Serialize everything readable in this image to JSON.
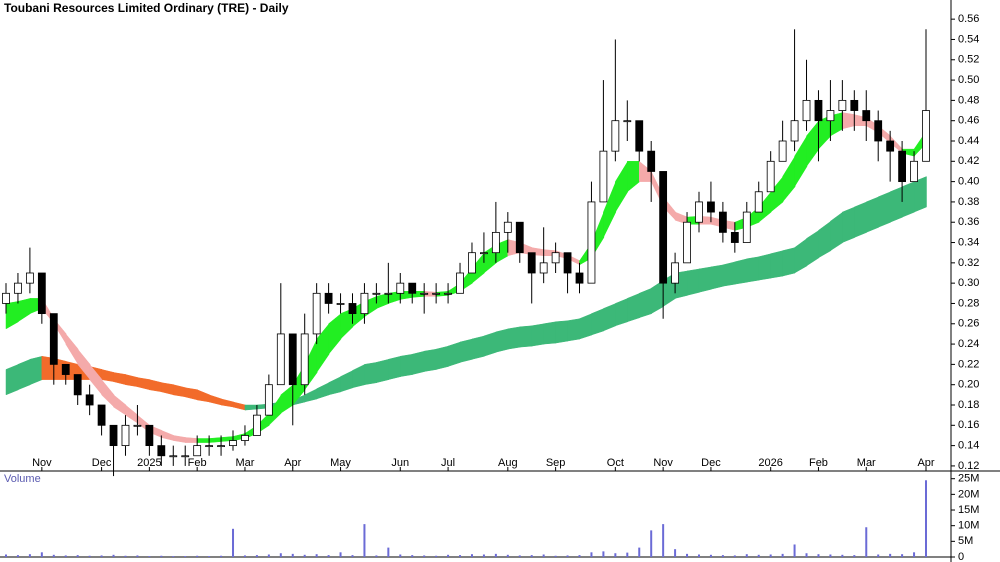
{
  "chart_data": {
    "type": "candlestick",
    "title": "Toubani Resources Limited Ordinary (TRE) - Daily",
    "categories": [
      null,
      null,
      null,
      "Nov",
      null,
      null,
      null,
      null,
      "Dec",
      null,
      null,
      null,
      "2025",
      null,
      null,
      null,
      "Feb",
      null,
      null,
      null,
      "Mar",
      null,
      null,
      null,
      "Apr",
      null,
      null,
      null,
      "May",
      null,
      null,
      null,
      null,
      "Jun",
      null,
      null,
      null,
      "Jul",
      null,
      null,
      null,
      null,
      "Aug",
      null,
      null,
      null,
      "Sep",
      null,
      null,
      null,
      null,
      "Oct",
      null,
      null,
      null,
      "Nov",
      null,
      null,
      null,
      "Dec",
      null,
      null,
      null,
      null,
      "2026",
      null,
      null,
      null,
      "Feb",
      null,
      null,
      null,
      "Mar",
      null,
      null,
      null,
      null,
      "Apr"
    ],
    "open": [
      0.28,
      0.29,
      0.3,
      0.31,
      0.27,
      0.22,
      0.21,
      0.19,
      0.18,
      0.16,
      0.14,
      0.16,
      0.16,
      0.14,
      0.13,
      0.13,
      0.13,
      0.14,
      0.14,
      0.14,
      0.145,
      0.15,
      0.17,
      0.2,
      0.25,
      0.2,
      0.25,
      0.29,
      0.28,
      0.28,
      0.27,
      0.29,
      0.29,
      0.29,
      0.3,
      0.29,
      0.29,
      0.29,
      0.29,
      0.31,
      0.33,
      0.33,
      0.35,
      0.36,
      0.33,
      0.31,
      0.32,
      0.33,
      0.31,
      0.3,
      0.38,
      0.43,
      0.46,
      0.46,
      0.43,
      0.41,
      0.3,
      0.32,
      0.36,
      0.38,
      0.37,
      0.35,
      0.34,
      0.37,
      0.39,
      0.42,
      0.44,
      0.46,
      0.48,
      0.46,
      0.47,
      0.48,
      0.47,
      0.46,
      0.44,
      0.43,
      0.4,
      0.42
    ],
    "high": [
      0.3,
      0.31,
      0.335,
      0.31,
      0.27,
      0.22,
      0.21,
      0.2,
      0.18,
      0.16,
      0.17,
      0.18,
      0.16,
      0.15,
      0.14,
      0.14,
      0.15,
      0.15,
      0.15,
      0.155,
      0.16,
      0.18,
      0.21,
      0.3,
      0.25,
      0.27,
      0.3,
      0.3,
      0.29,
      0.29,
      0.3,
      0.3,
      0.32,
      0.31,
      0.3,
      0.3,
      0.3,
      0.3,
      0.32,
      0.34,
      0.35,
      0.38,
      0.37,
      0.36,
      0.33,
      0.355,
      0.34,
      0.33,
      0.32,
      0.4,
      0.5,
      0.54,
      0.48,
      0.46,
      0.44,
      0.41,
      0.33,
      0.37,
      0.39,
      0.4,
      0.38,
      0.36,
      0.38,
      0.4,
      0.43,
      0.46,
      0.55,
      0.52,
      0.49,
      0.5,
      0.5,
      0.49,
      0.49,
      0.47,
      0.45,
      0.44,
      0.43,
      0.55
    ],
    "low": [
      0.27,
      0.28,
      0.29,
      0.26,
      0.2,
      0.2,
      0.18,
      0.17,
      0.15,
      0.11,
      0.13,
      0.15,
      0.13,
      0.12,
      0.12,
      0.12,
      0.13,
      0.13,
      0.13,
      0.135,
      0.14,
      0.15,
      0.17,
      0.2,
      0.16,
      0.19,
      0.24,
      0.27,
      0.27,
      0.26,
      0.26,
      0.28,
      0.28,
      0.28,
      0.28,
      0.27,
      0.28,
      0.28,
      0.29,
      0.31,
      0.32,
      0.32,
      0.33,
      0.32,
      0.28,
      0.3,
      0.31,
      0.29,
      0.29,
      0.3,
      0.38,
      0.42,
      0.44,
      0.42,
      0.38,
      0.265,
      0.29,
      0.32,
      0.35,
      0.36,
      0.34,
      0.33,
      0.34,
      0.37,
      0.39,
      0.42,
      0.43,
      0.45,
      0.42,
      0.44,
      0.45,
      0.45,
      0.44,
      0.42,
      0.4,
      0.38,
      0.4,
      0.42
    ],
    "close": [
      0.29,
      0.3,
      0.31,
      0.27,
      0.22,
      0.21,
      0.19,
      0.18,
      0.16,
      0.14,
      0.16,
      0.16,
      0.14,
      0.13,
      0.13,
      0.13,
      0.14,
      0.14,
      0.14,
      0.145,
      0.15,
      0.17,
      0.2,
      0.25,
      0.2,
      0.25,
      0.29,
      0.28,
      0.28,
      0.27,
      0.29,
      0.29,
      0.29,
      0.3,
      0.29,
      0.29,
      0.29,
      0.29,
      0.31,
      0.33,
      0.33,
      0.35,
      0.36,
      0.33,
      0.31,
      0.32,
      0.33,
      0.31,
      0.3,
      0.38,
      0.43,
      0.46,
      0.46,
      0.43,
      0.41,
      0.3,
      0.32,
      0.36,
      0.38,
      0.37,
      0.35,
      0.34,
      0.37,
      0.39,
      0.42,
      0.44,
      0.46,
      0.48,
      0.46,
      0.47,
      0.48,
      0.47,
      0.46,
      0.44,
      0.43,
      0.4,
      0.42,
      0.47
    ],
    "up_color": "#ffffff",
    "down_color": "#000000",
    "short_band": {
      "color": "#22ee22",
      "falling_color": "#f4aaaa",
      "upper": [
        0.28,
        0.282,
        0.285,
        0.285,
        0.265,
        0.25,
        0.235,
        0.22,
        0.205,
        0.19,
        0.18,
        0.17,
        0.16,
        0.155,
        0.15,
        0.148,
        0.147,
        0.147,
        0.148,
        0.149,
        0.152,
        0.16,
        0.172,
        0.19,
        0.2,
        0.22,
        0.245,
        0.26,
        0.27,
        0.275,
        0.282,
        0.287,
        0.29,
        0.292,
        0.292,
        0.292,
        0.291,
        0.292,
        0.3,
        0.315,
        0.33,
        0.338,
        0.343,
        0.34,
        0.335,
        0.333,
        0.332,
        0.328,
        0.322,
        0.34,
        0.37,
        0.4,
        0.42,
        0.42,
        0.41,
        0.385,
        0.37,
        0.365,
        0.366,
        0.365,
        0.362,
        0.36,
        0.365,
        0.375,
        0.39,
        0.405,
        0.425,
        0.445,
        0.46,
        0.465,
        0.468,
        0.466,
        0.463,
        0.455,
        0.445,
        0.432,
        0.432,
        0.45
      ],
      "lower": [
        0.255,
        0.262,
        0.27,
        0.275,
        0.26,
        0.24,
        0.22,
        0.205,
        0.19,
        0.178,
        0.17,
        0.162,
        0.153,
        0.148,
        0.145,
        0.143,
        0.143,
        0.143,
        0.144,
        0.145,
        0.147,
        0.152,
        0.16,
        0.172,
        0.18,
        0.195,
        0.212,
        0.23,
        0.245,
        0.257,
        0.267,
        0.275,
        0.28,
        0.284,
        0.286,
        0.287,
        0.287,
        0.288,
        0.292,
        0.3,
        0.31,
        0.32,
        0.327,
        0.33,
        0.328,
        0.327,
        0.327,
        0.324,
        0.318,
        0.325,
        0.345,
        0.37,
        0.39,
        0.4,
        0.4,
        0.375,
        0.362,
        0.358,
        0.358,
        0.358,
        0.355,
        0.352,
        0.355,
        0.36,
        0.37,
        0.38,
        0.395,
        0.415,
        0.432,
        0.445,
        0.452,
        0.455,
        0.455,
        0.448,
        0.438,
        0.428,
        0.425,
        0.438
      ]
    },
    "long_band": {
      "color": "#3cb878",
      "falling_color": "#f26b2a",
      "upper": [
        0.215,
        0.22,
        0.225,
        0.228,
        0.226,
        0.223,
        0.22,
        0.218,
        0.215,
        0.212,
        0.21,
        0.207,
        0.205,
        0.202,
        0.2,
        0.197,
        0.195,
        0.19,
        0.186,
        0.183,
        0.18,
        0.18,
        0.181,
        0.183,
        0.185,
        0.19,
        0.196,
        0.202,
        0.208,
        0.214,
        0.22,
        0.222,
        0.225,
        0.228,
        0.23,
        0.233,
        0.235,
        0.238,
        0.242,
        0.245,
        0.248,
        0.252,
        0.255,
        0.257,
        0.258,
        0.26,
        0.262,
        0.263,
        0.265,
        0.27,
        0.275,
        0.28,
        0.285,
        0.29,
        0.295,
        0.303,
        0.31,
        0.312,
        0.314,
        0.316,
        0.318,
        0.321,
        0.324,
        0.326,
        0.329,
        0.332,
        0.335,
        0.344,
        0.352,
        0.361,
        0.37,
        0.375,
        0.38,
        0.385,
        0.39,
        0.395,
        0.4,
        0.405
      ],
      "lower": [
        0.19,
        0.195,
        0.2,
        0.205,
        0.205,
        0.205,
        0.205,
        0.205,
        0.205,
        0.203,
        0.2,
        0.198,
        0.195,
        0.193,
        0.19,
        0.188,
        0.185,
        0.183,
        0.18,
        0.178,
        0.175,
        0.176,
        0.177,
        0.178,
        0.18,
        0.183,
        0.186,
        0.19,
        0.193,
        0.197,
        0.2,
        0.202,
        0.205,
        0.208,
        0.21,
        0.213,
        0.215,
        0.218,
        0.222,
        0.225,
        0.228,
        0.232,
        0.235,
        0.237,
        0.238,
        0.24,
        0.241,
        0.243,
        0.245,
        0.249,
        0.253,
        0.258,
        0.262,
        0.266,
        0.27,
        0.277,
        0.285,
        0.288,
        0.291,
        0.294,
        0.297,
        0.299,
        0.301,
        0.303,
        0.305,
        0.307,
        0.31,
        0.317,
        0.325,
        0.332,
        0.34,
        0.345,
        0.35,
        0.355,
        0.36,
        0.365,
        0.37,
        0.375
      ]
    },
    "ylim": [
      0.115,
      0.57
    ],
    "yticks": [
      0.12,
      0.14,
      0.16,
      0.18,
      {
        "value": 0.2,
        "label": "0.20"
      },
      0.22,
      0.24,
      0.26,
      0.28,
      {
        "value": 0.3,
        "label": "0.30"
      },
      0.32,
      0.34,
      0.36,
      0.38,
      {
        "value": 0.4,
        "label": "0.40"
      },
      0.42,
      0.44,
      0.46,
      0.48,
      {
        "value": 0.5,
        "label": "0.50"
      },
      0.52,
      0.54,
      0.56
    ],
    "volume": {
      "label": "Volume",
      "color": "#6b6bd6",
      "values": [
        800000,
        600000,
        900000,
        1500000,
        700000,
        500000,
        600000,
        400000,
        500000,
        700000,
        400000,
        500000,
        300000,
        400000,
        300000,
        300000,
        400000,
        300000,
        400000,
        9000000,
        500000,
        600000,
        800000,
        1200000,
        1000000,
        700000,
        900000,
        600000,
        1500000,
        600000,
        10500000,
        500000,
        3000000,
        800000,
        600000,
        500000,
        400000,
        700000,
        600000,
        900000,
        800000,
        1000000,
        700000,
        500000,
        600000,
        800000,
        400000,
        500000,
        600000,
        1500000,
        1800000,
        1200000,
        1400000,
        3000000,
        8500000,
        10500000,
        2500000,
        1000000,
        800000,
        700000,
        600000,
        500000,
        900000,
        700000,
        800000,
        1000000,
        4000000,
        1200000,
        900000,
        800000,
        700000,
        600000,
        9500000,
        800000,
        1000000,
        900000,
        1500000,
        24500000
      ],
      "ylim": [
        0,
        26500000
      ],
      "yticks": [
        0,
        {
          "value": 5000000,
          "label": "5M"
        },
        {
          "value": 10000000,
          "label": "10M"
        },
        {
          "value": 15000000,
          "label": "15M"
        },
        {
          "value": 20000000,
          "label": "20M"
        },
        {
          "value": 25000000,
          "label": "25M"
        }
      ]
    }
  }
}
